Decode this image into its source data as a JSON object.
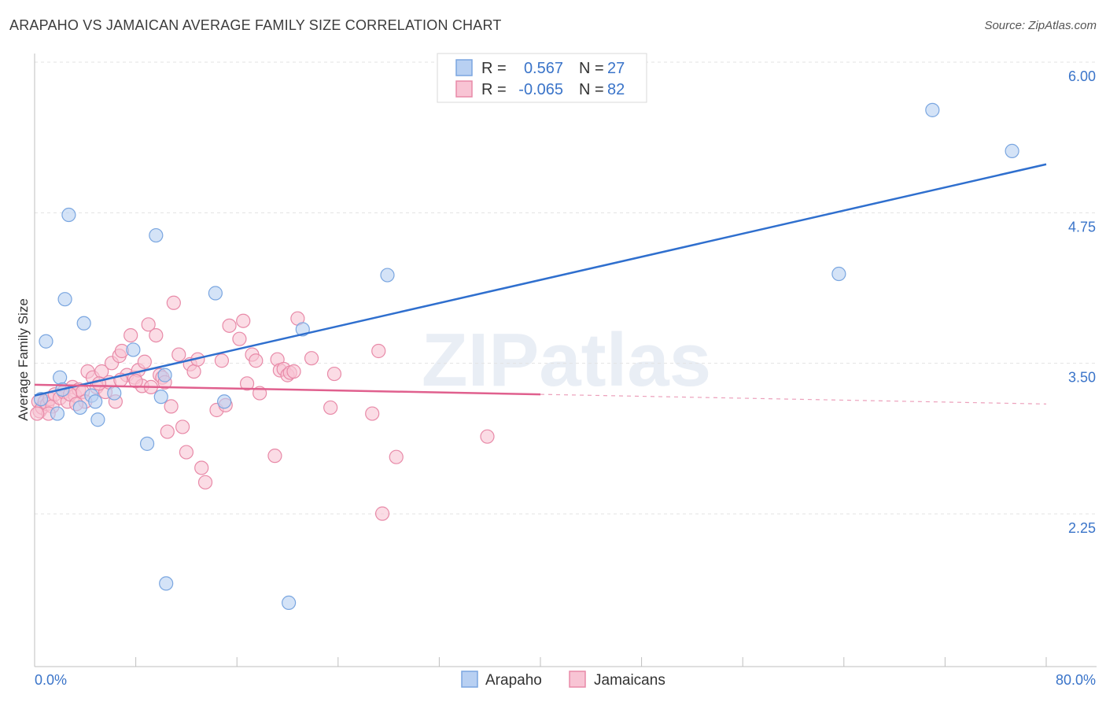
{
  "title": "ARAPAHO VS JAMAICAN AVERAGE FAMILY SIZE CORRELATION CHART",
  "source": "Source: ZipAtlas.com",
  "watermark": "ZIPatlas",
  "colors": {
    "arapaho_fill": "#b8d0f2",
    "arapaho_stroke": "#7aa6e0",
    "arapaho_line": "#2f6fce",
    "jamaican_fill": "#f8c4d4",
    "jamaican_stroke": "#e88aa8",
    "jamaican_line": "#e0608e",
    "tick_label": "#3a74c9"
  },
  "legend": {
    "arapaho": {
      "r_label": "R =",
      "r_value": "0.567",
      "n_label": "N =",
      "n_value": "27"
    },
    "jamaican": {
      "r_label": "R =",
      "r_value": "-0.065",
      "n_label": "N =",
      "n_value": "82"
    }
  },
  "chart_data": {
    "type": "scatter",
    "title": "ARAPAHO VS JAMAICAN AVERAGE FAMILY SIZE CORRELATION CHART",
    "xlabel": "",
    "ylabel": "Average Family Size",
    "xlim": [
      0,
      80
    ],
    "ylim": [
      1.0,
      6.2
    ],
    "x_tick_labels": [
      "0.0%",
      "80.0%"
    ],
    "y_ticks": [
      2.25,
      3.5,
      4.75,
      6.0
    ],
    "y_tick_labels": [
      "2.25",
      "3.50",
      "4.75",
      "6.00"
    ],
    "series": [
      {
        "name": "Arapaho",
        "points": [
          [
            0.5,
            3.32
          ],
          [
            0.9,
            3.8
          ],
          [
            1.8,
            3.2
          ],
          [
            2.0,
            3.5
          ],
          [
            2.2,
            3.4
          ],
          [
            2.4,
            4.15
          ],
          [
            2.7,
            4.85
          ],
          [
            3.6,
            3.25
          ],
          [
            3.9,
            3.95
          ],
          [
            4.5,
            3.35
          ],
          [
            4.8,
            3.3
          ],
          [
            5.0,
            3.15
          ],
          [
            6.3,
            3.37
          ],
          [
            7.8,
            3.73
          ],
          [
            8.9,
            2.95
          ],
          [
            9.6,
            4.68
          ],
          [
            10.0,
            3.34
          ],
          [
            10.3,
            3.52
          ],
          [
            10.4,
            1.79
          ],
          [
            14.3,
            4.2
          ],
          [
            15.0,
            3.3
          ],
          [
            20.1,
            1.63
          ],
          [
            21.2,
            3.9
          ],
          [
            27.9,
            4.35
          ],
          [
            63.6,
            4.36
          ],
          [
            71.0,
            5.72
          ],
          [
            77.3,
            5.38
          ]
        ],
        "trend": {
          "x": [
            0,
            80
          ],
          "y": [
            3.35,
            5.27
          ]
        }
      },
      {
        "name": "Jamaicans",
        "points": [
          [
            0.3,
            3.3
          ],
          [
            0.4,
            3.22
          ],
          [
            0.6,
            3.25
          ],
          [
            0.8,
            3.3
          ],
          [
            1.0,
            3.28
          ],
          [
            1.2,
            3.32
          ],
          [
            1.4,
            3.26
          ],
          [
            1.6,
            3.36
          ],
          [
            2.0,
            3.33
          ],
          [
            2.3,
            3.38
          ],
          [
            2.6,
            3.3
          ],
          [
            3.0,
            3.42
          ],
          [
            3.2,
            3.35
          ],
          [
            3.5,
            3.4
          ],
          [
            3.8,
            3.38
          ],
          [
            4.2,
            3.55
          ],
          [
            4.6,
            3.5
          ],
          [
            4.9,
            3.42
          ],
          [
            5.3,
            3.55
          ],
          [
            5.6,
            3.38
          ],
          [
            5.9,
            3.46
          ],
          [
            6.1,
            3.62
          ],
          [
            6.4,
            3.3
          ],
          [
            6.7,
            3.68
          ],
          [
            6.9,
            3.72
          ],
          [
            7.3,
            3.52
          ],
          [
            7.6,
            3.85
          ],
          [
            7.9,
            3.5
          ],
          [
            8.2,
            3.56
          ],
          [
            8.5,
            3.43
          ],
          [
            8.7,
            3.63
          ],
          [
            9.0,
            3.94
          ],
          [
            9.2,
            3.42
          ],
          [
            9.6,
            3.85
          ],
          [
            9.9,
            3.52
          ],
          [
            10.1,
            3.5
          ],
          [
            10.3,
            3.46
          ],
          [
            10.5,
            3.05
          ],
          [
            10.8,
            3.26
          ],
          [
            11.0,
            4.12
          ],
          [
            11.4,
            3.69
          ],
          [
            11.7,
            3.09
          ],
          [
            12.0,
            2.88
          ],
          [
            12.3,
            3.61
          ],
          [
            12.6,
            3.55
          ],
          [
            12.9,
            3.65
          ],
          [
            13.2,
            2.75
          ],
          [
            13.5,
            2.63
          ],
          [
            14.4,
            3.23
          ],
          [
            14.8,
            3.64
          ],
          [
            15.1,
            3.27
          ],
          [
            15.4,
            3.93
          ],
          [
            16.2,
            3.82
          ],
          [
            16.5,
            3.97
          ],
          [
            16.8,
            3.45
          ],
          [
            17.2,
            3.69
          ],
          [
            17.5,
            3.64
          ],
          [
            17.8,
            3.37
          ],
          [
            19.0,
            2.85
          ],
          [
            19.2,
            3.65
          ],
          [
            19.4,
            3.56
          ],
          [
            19.7,
            3.57
          ],
          [
            20.0,
            3.52
          ],
          [
            20.2,
            3.54
          ],
          [
            20.5,
            3.55
          ],
          [
            20.8,
            3.99
          ],
          [
            21.9,
            3.66
          ],
          [
            23.4,
            3.25
          ],
          [
            23.7,
            3.53
          ],
          [
            26.7,
            3.2
          ],
          [
            27.2,
            3.72
          ],
          [
            27.5,
            2.37
          ],
          [
            28.6,
            2.84
          ],
          [
            35.8,
            3.01
          ],
          [
            4.0,
            3.3
          ],
          [
            2.8,
            3.36
          ],
          [
            5.1,
            3.45
          ],
          [
            6.8,
            3.48
          ],
          [
            8.0,
            3.47
          ],
          [
            3.3,
            3.28
          ],
          [
            1.1,
            3.2
          ],
          [
            0.2,
            3.2
          ]
        ],
        "trend": {
          "x": [
            0,
            40
          ],
          "y": [
            3.44,
            3.36
          ]
        },
        "trend_dashed": {
          "x": [
            40,
            80
          ],
          "y": [
            3.36,
            3.28
          ]
        }
      }
    ]
  },
  "bottom_legend": {
    "arapaho": "Arapaho",
    "jamaican": "Jamaicans"
  }
}
